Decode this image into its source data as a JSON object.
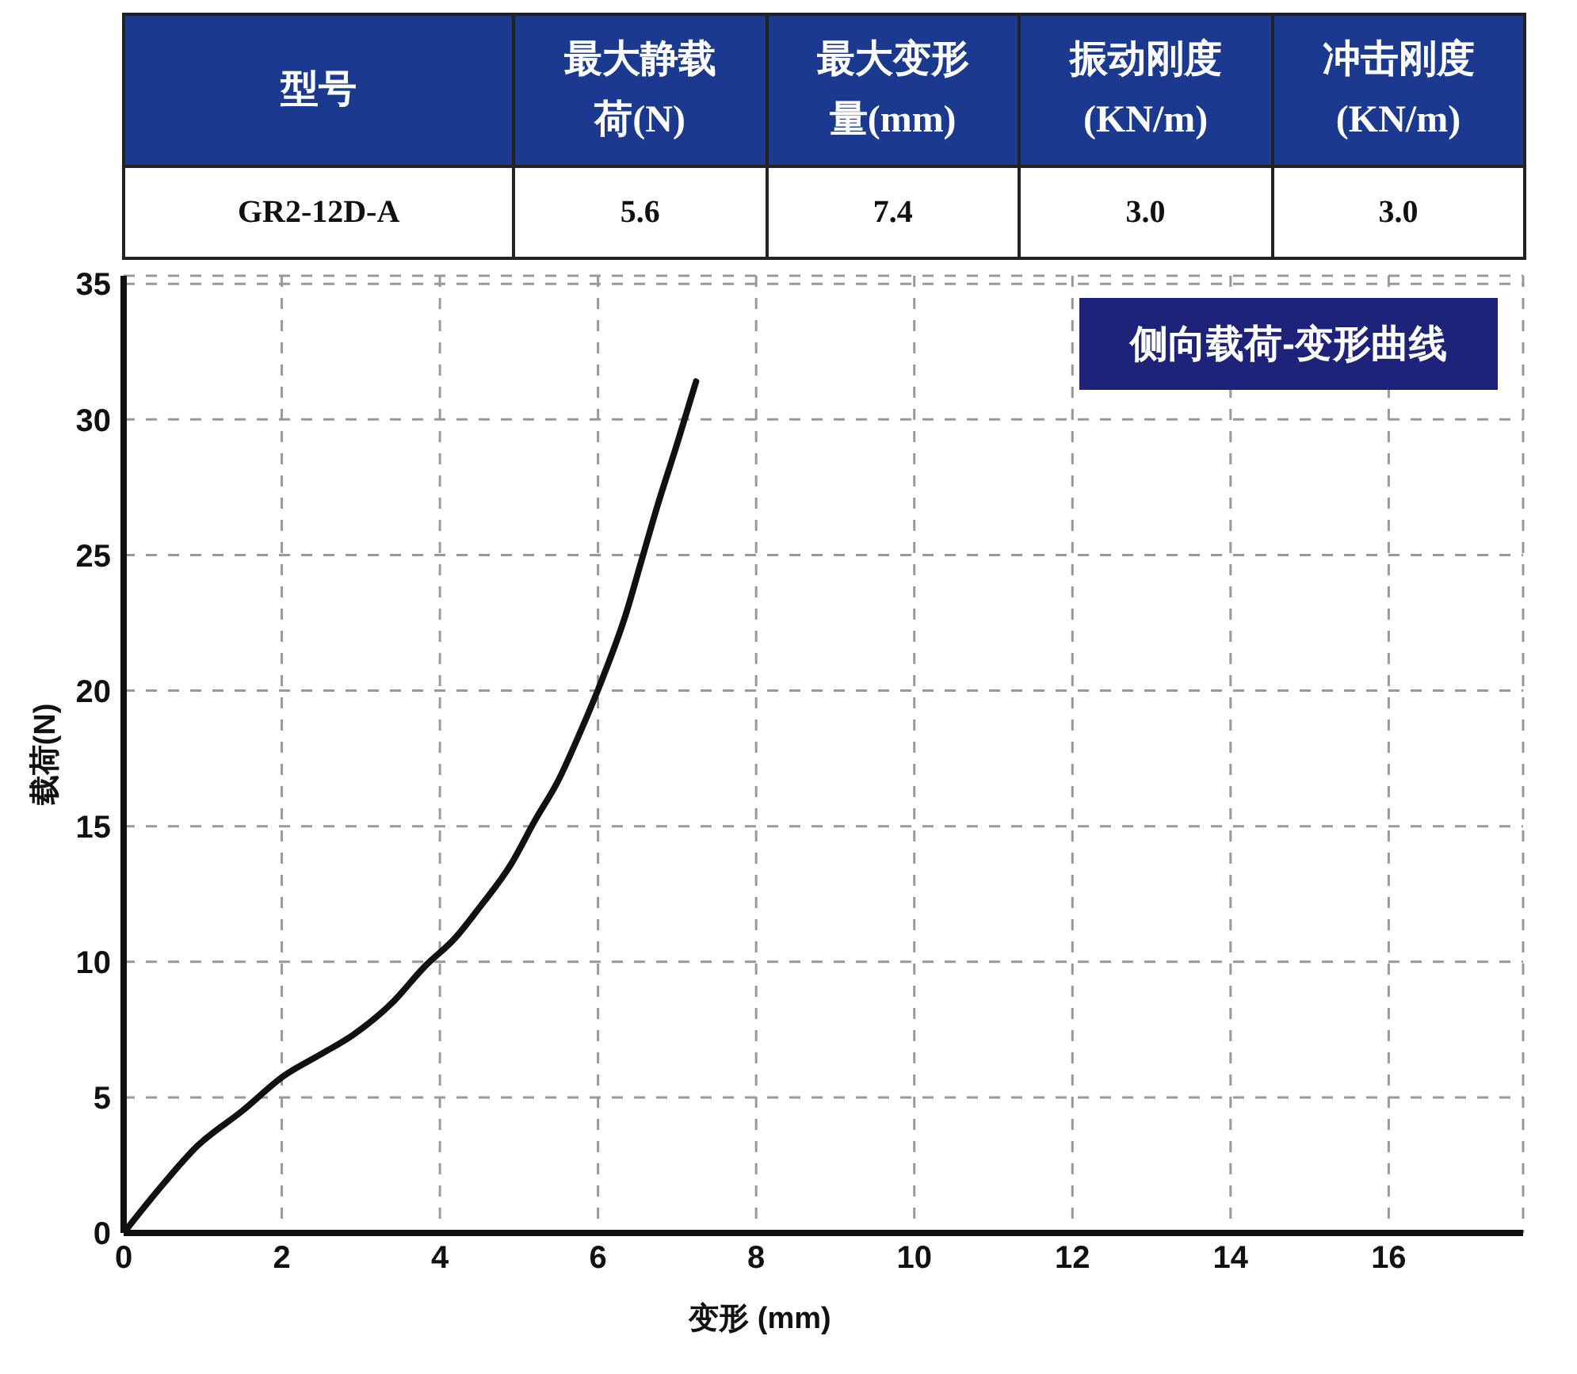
{
  "chart_data": [
    {
      "type": "other",
      "annotations": [
        "型号",
        "最大静载荷(N)",
        "最大变形量(mm)",
        "振动刚度(KN/m)",
        "冲击刚度(KN/m)",
        "GR2-12D-A",
        "5.6",
        "7.4",
        "3.0",
        "3.0"
      ]
    },
    {
      "type": "line",
      "title": "侧向载荷-变形曲线",
      "xlabel": "变形 (mm)",
      "ylabel": "载荷(N)",
      "x": [
        0,
        0.5,
        0.93,
        1.5,
        2.03,
        2.5,
        2.9,
        3.4,
        3.8,
        4.2,
        4.5,
        4.9,
        5.2,
        5.5,
        5.75,
        6.05,
        6.35,
        6.55,
        6.75,
        7.0,
        7.24
      ],
      "series": [
        {
          "color": "#111111",
          "values": [
            0,
            1.8,
            3.2,
            4.5,
            5.8,
            6.6,
            7.3,
            8.5,
            9.8,
            10.9,
            12.0,
            13.6,
            15.2,
            16.7,
            18.3,
            20.4,
            22.8,
            24.8,
            26.8,
            29.1,
            31.4
          ]
        }
      ],
      "xlim": [
        0,
        17.7
      ],
      "ylim": [
        0,
        35.3
      ],
      "xticks": [
        0,
        2,
        4,
        6,
        8,
        10,
        12,
        14,
        16
      ],
      "yticks": [
        0,
        5,
        10,
        15,
        20,
        25,
        30,
        35
      ],
      "grid": true,
      "marker": "none",
      "line_style": "solid"
    }
  ]
}
